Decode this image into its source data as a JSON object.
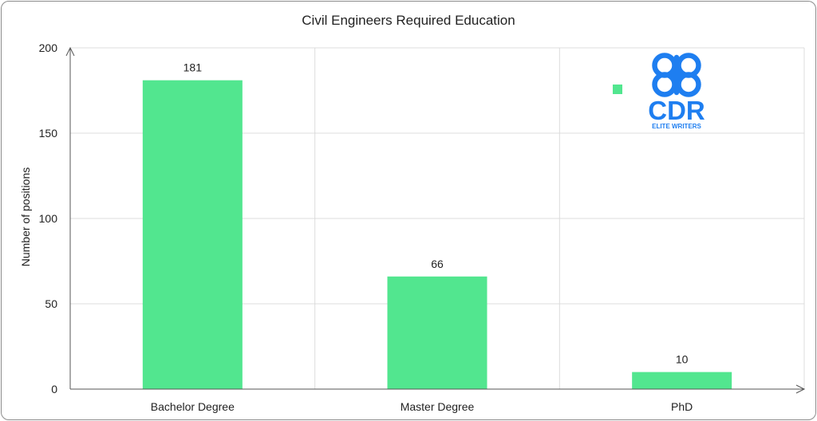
{
  "chart_data": {
    "type": "bar",
    "title": "Civil Engineers Required Education",
    "xlabel": "",
    "ylabel": "Number of positions",
    "categories": [
      "Bachelor Degree",
      "Master Degree",
      "PhD"
    ],
    "series": [
      {
        "values": [
          181,
          66,
          10
        ]
      }
    ],
    "data_labels": [
      "181",
      "66",
      "10"
    ],
    "ylim": [
      0,
      200
    ],
    "yticks": [
      0,
      50,
      100,
      150,
      200
    ],
    "grid": true,
    "bar_color": "#52e68f"
  },
  "logo": {
    "text": "CDR",
    "subtext": "ELITE WRITERS",
    "color": "#1e7ef0",
    "icon": "cdr-elite-writers-logo"
  }
}
